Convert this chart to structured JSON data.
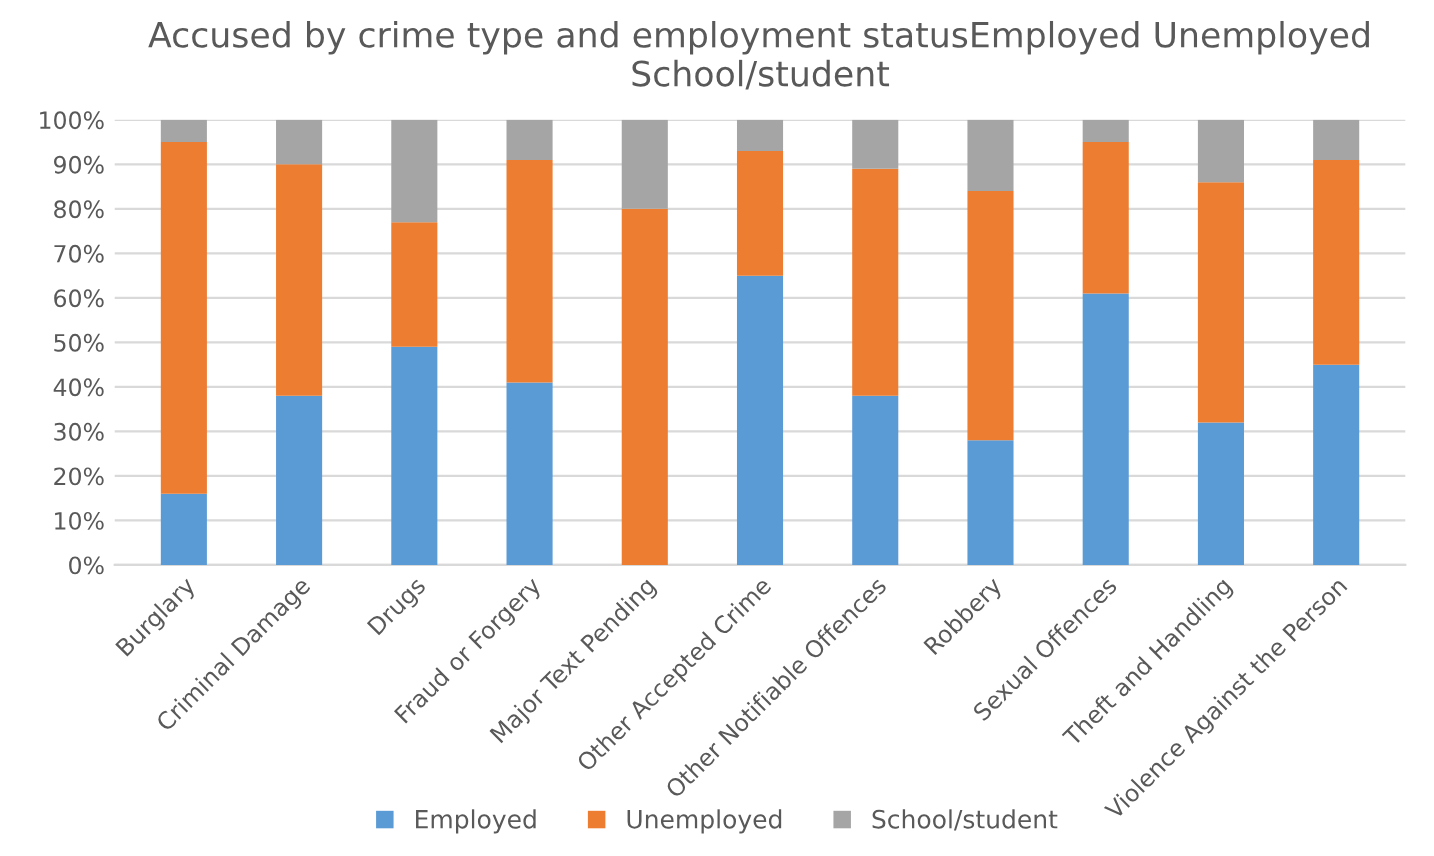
{
  "chart_data": {
    "type": "bar",
    "stacked": true,
    "title": "Accused by crime type and employment statusEmployed Unemployed School/student",
    "categories": [
      "Burglary",
      "Criminal Damage",
      "Drugs",
      "Fraud or Forgery",
      "Major Text Pending",
      "Other Accepted Crime",
      "Other Notifiable Offences",
      "Robbery",
      "Sexual Offences",
      "Theft and Handling",
      "Violence Against the Person"
    ],
    "series": [
      {
        "name": "Employed",
        "color": "#5b9bd5",
        "values": [
          16,
          38,
          49,
          41,
          0,
          65,
          38,
          28,
          61,
          32,
          45
        ]
      },
      {
        "name": "Unemployed",
        "color": "#ed7d31",
        "values": [
          79,
          52,
          28,
          50,
          80,
          28,
          51,
          56,
          34,
          54,
          46
        ]
      },
      {
        "name": "School/student",
        "color": "#a5a5a5",
        "values": [
          5,
          10,
          23,
          9,
          20,
          7,
          11,
          16,
          5,
          14,
          9
        ]
      }
    ],
    "ylim": [
      0,
      100
    ],
    "yticks": [
      {
        "value": 0,
        "label": "0%"
      },
      {
        "value": 10,
        "label": "10%"
      },
      {
        "value": 20,
        "label": "20%"
      },
      {
        "value": 30,
        "label": "30%"
      },
      {
        "value": 40,
        "label": "40%"
      },
      {
        "value": 50,
        "label": "50%"
      },
      {
        "value": 60,
        "label": "60%"
      },
      {
        "value": 70,
        "label": "70%"
      },
      {
        "value": 80,
        "label": "80%"
      },
      {
        "value": 90,
        "label": "90%"
      },
      {
        "value": 100,
        "label": "100%"
      }
    ],
    "grid": "y",
    "legend": "bottom"
  }
}
